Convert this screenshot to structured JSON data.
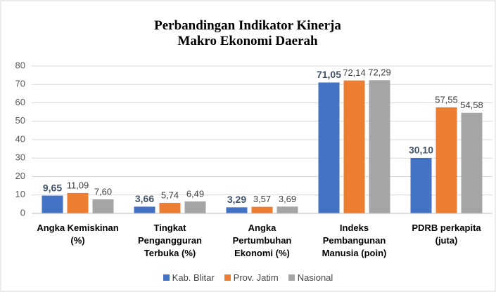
{
  "chart_data": {
    "type": "bar",
    "title": "Perbandingan Indikator Kinerja Makro Ekonomi Daerah",
    "categories": [
      "Angka Kemiskinan (%)",
      "Tingkat Pengangguran Terbuka (%)",
      "Angka Pertumbuhan Ekonomi (%)",
      "Indeks Pembangunan Manusia (poin)",
      "PDRB perkapita (juta)"
    ],
    "series": [
      {
        "name": "Kab. Blitar",
        "color": "#4472c4",
        "values": [
          9.65,
          3.66,
          3.29,
          71.05,
          30.1
        ],
        "value_labels": [
          "9,65",
          "3,66",
          "3,29",
          "71,05",
          "30,10"
        ]
      },
      {
        "name": "Prov. Jatim",
        "color": "#ed7d31",
        "values": [
          11.09,
          5.74,
          3.57,
          72.14,
          57.55
        ],
        "value_labels": [
          "11,09",
          "5,74",
          "3,57",
          "72,14",
          "57,55"
        ]
      },
      {
        "name": "Nasional",
        "color": "#a5a5a5",
        "values": [
          7.6,
          6.49,
          3.69,
          72.29,
          54.58
        ],
        "value_labels": [
          "7,60",
          "6,49",
          "3,69",
          "72,29",
          "54,58"
        ]
      }
    ],
    "ylim": [
      0,
      80
    ],
    "yticks": [
      0,
      10,
      20,
      30,
      40,
      50,
      60,
      70,
      80
    ],
    "grid": true,
    "legend": "bottom"
  }
}
